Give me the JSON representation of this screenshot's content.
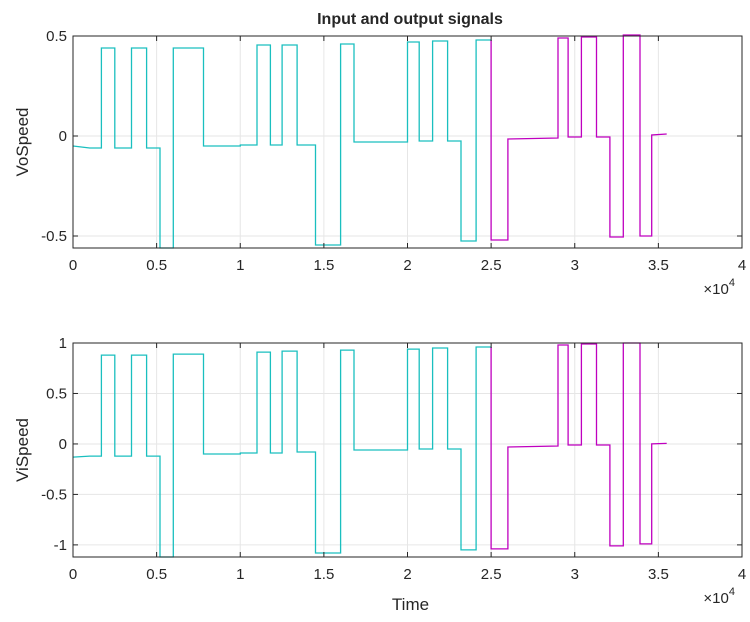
{
  "figure": {
    "title": "Input and output signals"
  },
  "chart_data": [
    {
      "type": "line",
      "title": "Input and output signals",
      "xlabel": "",
      "ylabel": "VoSpeed",
      "xlim": [
        0,
        40000
      ],
      "ylim": [
        -0.56,
        0.5
      ],
      "x_tick_labels": [
        "0",
        "0.5",
        "1",
        "1.5",
        "2",
        "2.5",
        "3",
        "3.5",
        "4"
      ],
      "x_tick_values": [
        0,
        5000,
        10000,
        15000,
        20000,
        25000,
        30000,
        35000,
        40000
      ],
      "x_exponent_label": "×10",
      "x_exponent_power": "4",
      "y_tick_labels": [
        "-0.5",
        "0",
        "0.5"
      ],
      "y_tick_values": [
        -0.5,
        0,
        0.5
      ],
      "grid": true,
      "series": [
        {
          "color": "#1ABFBF",
          "x": [
            0,
            1000,
            1700,
            1700,
            2500,
            2500,
            3500,
            3500,
            4400,
            4400,
            5200,
            5200,
            6000,
            6000,
            6500,
            6500,
            7800,
            7800,
            10000,
            10000,
            11000,
            11000,
            11800,
            11800,
            12500,
            12500,
            13400,
            13400,
            14500,
            14500,
            15300,
            15300,
            16000,
            16000,
            16800,
            16800,
            19300,
            19300,
            20000,
            20000,
            20700,
            20700,
            21500,
            21500,
            22400,
            22400,
            23200,
            23200,
            24100,
            24100,
            25000
          ],
          "y": [
            -0.05,
            -0.06,
            -0.06,
            0.44,
            0.44,
            -0.06,
            -0.06,
            0.44,
            0.44,
            -0.06,
            -0.06,
            -0.56,
            -0.56,
            0.44,
            0.44,
            0.44,
            0.44,
            -0.05,
            -0.05,
            -0.045,
            -0.045,
            0.455,
            0.455,
            -0.045,
            -0.045,
            0.455,
            0.455,
            -0.045,
            -0.045,
            -0.545,
            -0.545,
            -0.545,
            -0.545,
            0.46,
            0.46,
            -0.03,
            -0.03,
            -0.03,
            -0.03,
            0.47,
            0.47,
            -0.025,
            -0.025,
            0.475,
            0.475,
            -0.025,
            -0.025,
            -0.525,
            -0.525,
            0.48,
            0.48
          ]
        },
        {
          "color": "#BF00BF",
          "x": [
            25000,
            25000,
            26000,
            26000,
            29000,
            29000,
            29600,
            29600,
            30400,
            30400,
            31300,
            31300,
            32100,
            32100,
            32900,
            32900,
            33900,
            33900,
            34600,
            34600,
            35500
          ],
          "y": [
            0.48,
            -0.52,
            -0.52,
            -0.015,
            -0.01,
            0.49,
            0.49,
            -0.005,
            -0.005,
            0.495,
            0.495,
            -0.005,
            -0.005,
            -0.505,
            -0.505,
            0.505,
            0.505,
            -0.5,
            -0.5,
            0.005,
            0.01
          ]
        }
      ]
    },
    {
      "type": "line",
      "title": "",
      "xlabel": "Time",
      "ylabel": "ViSpeed",
      "xlim": [
        0,
        40000
      ],
      "ylim": [
        -1.12,
        1.0
      ],
      "x_tick_labels": [
        "0",
        "0.5",
        "1",
        "1.5",
        "2",
        "2.5",
        "3",
        "3.5",
        "4"
      ],
      "x_tick_values": [
        0,
        5000,
        10000,
        15000,
        20000,
        25000,
        30000,
        35000,
        40000
      ],
      "x_exponent_label": "×10",
      "x_exponent_power": "4",
      "y_tick_labels": [
        "-1",
        "-0.5",
        "0",
        "0.5",
        "1"
      ],
      "y_tick_values": [
        -1,
        -0.5,
        0,
        0.5,
        1
      ],
      "grid": true,
      "series": [
        {
          "color": "#1ABFBF",
          "x": [
            0,
            1000,
            1700,
            1700,
            2500,
            2500,
            3500,
            3500,
            4400,
            4400,
            5200,
            5200,
            6000,
            6000,
            6500,
            6500,
            7800,
            7800,
            10000,
            10000,
            11000,
            11000,
            11800,
            11800,
            12500,
            12500,
            13400,
            13400,
            14500,
            14500,
            15300,
            15300,
            16000,
            16000,
            16800,
            16800,
            19300,
            19300,
            20000,
            20000,
            20700,
            20700,
            21500,
            21500,
            22400,
            22400,
            23200,
            23200,
            24100,
            24100,
            25000
          ],
          "y": [
            -0.13,
            -0.12,
            -0.12,
            0.88,
            0.88,
            -0.12,
            -0.12,
            0.88,
            0.88,
            -0.12,
            -0.12,
            -1.12,
            -1.12,
            0.89,
            0.89,
            0.89,
            0.89,
            -0.1,
            -0.1,
            -0.09,
            -0.09,
            0.91,
            0.91,
            -0.09,
            -0.09,
            0.92,
            0.92,
            -0.08,
            -0.08,
            -1.08,
            -1.08,
            -1.08,
            -1.08,
            0.93,
            0.93,
            -0.06,
            -0.06,
            -0.06,
            -0.06,
            0.94,
            0.94,
            -0.05,
            -0.05,
            0.95,
            0.95,
            -0.05,
            -0.05,
            -1.05,
            -1.05,
            0.96,
            0.96
          ]
        },
        {
          "color": "#BF00BF",
          "x": [
            25000,
            25000,
            26000,
            26000,
            29000,
            29000,
            29600,
            29600,
            30400,
            30400,
            31300,
            31300,
            32100,
            32100,
            32900,
            32900,
            33900,
            33900,
            34600,
            34600,
            35500
          ],
          "y": [
            0.96,
            -1.04,
            -1.04,
            -0.03,
            -0.02,
            0.98,
            0.98,
            -0.01,
            -0.01,
            0.99,
            0.99,
            -0.01,
            -0.01,
            -1.01,
            -1.01,
            1.0,
            1.0,
            -0.99,
            -0.99,
            0.0,
            0.005
          ]
        }
      ]
    }
  ]
}
